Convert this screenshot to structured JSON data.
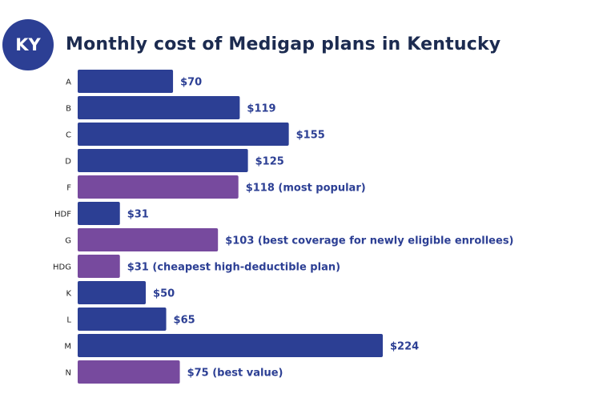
{
  "state_badge": "KY",
  "colors": {
    "standard": "#2c3f94",
    "highlight": "#774a9e",
    "badge": "#2c3f94",
    "label": "#2c3f94",
    "title": "#1c2b50"
  },
  "chart_data": {
    "type": "bar",
    "orientation": "horizontal",
    "title": "Monthly cost of Medigap plans in Kentucky",
    "categories": [
      "A",
      "B",
      "C",
      "D",
      "F",
      "HDF",
      "G",
      "HDG",
      "K",
      "L",
      "M",
      "N"
    ],
    "values": [
      70,
      119,
      155,
      125,
      118,
      31,
      103,
      31,
      50,
      65,
      224,
      75
    ],
    "data_labels": [
      "$70",
      "$119",
      "$155",
      "$125",
      "$118 (most popular)",
      "$31",
      "$103 (best coverage for newly eligible enrollees)",
      "$31 (cheapest high-deductible plan)",
      "$50",
      "$65",
      "$224",
      "$75 (best value)"
    ],
    "highlighted": [
      "F",
      "G",
      "HDG",
      "N"
    ],
    "xlim": [
      0,
      224
    ],
    "grid": false,
    "legend": "none"
  }
}
